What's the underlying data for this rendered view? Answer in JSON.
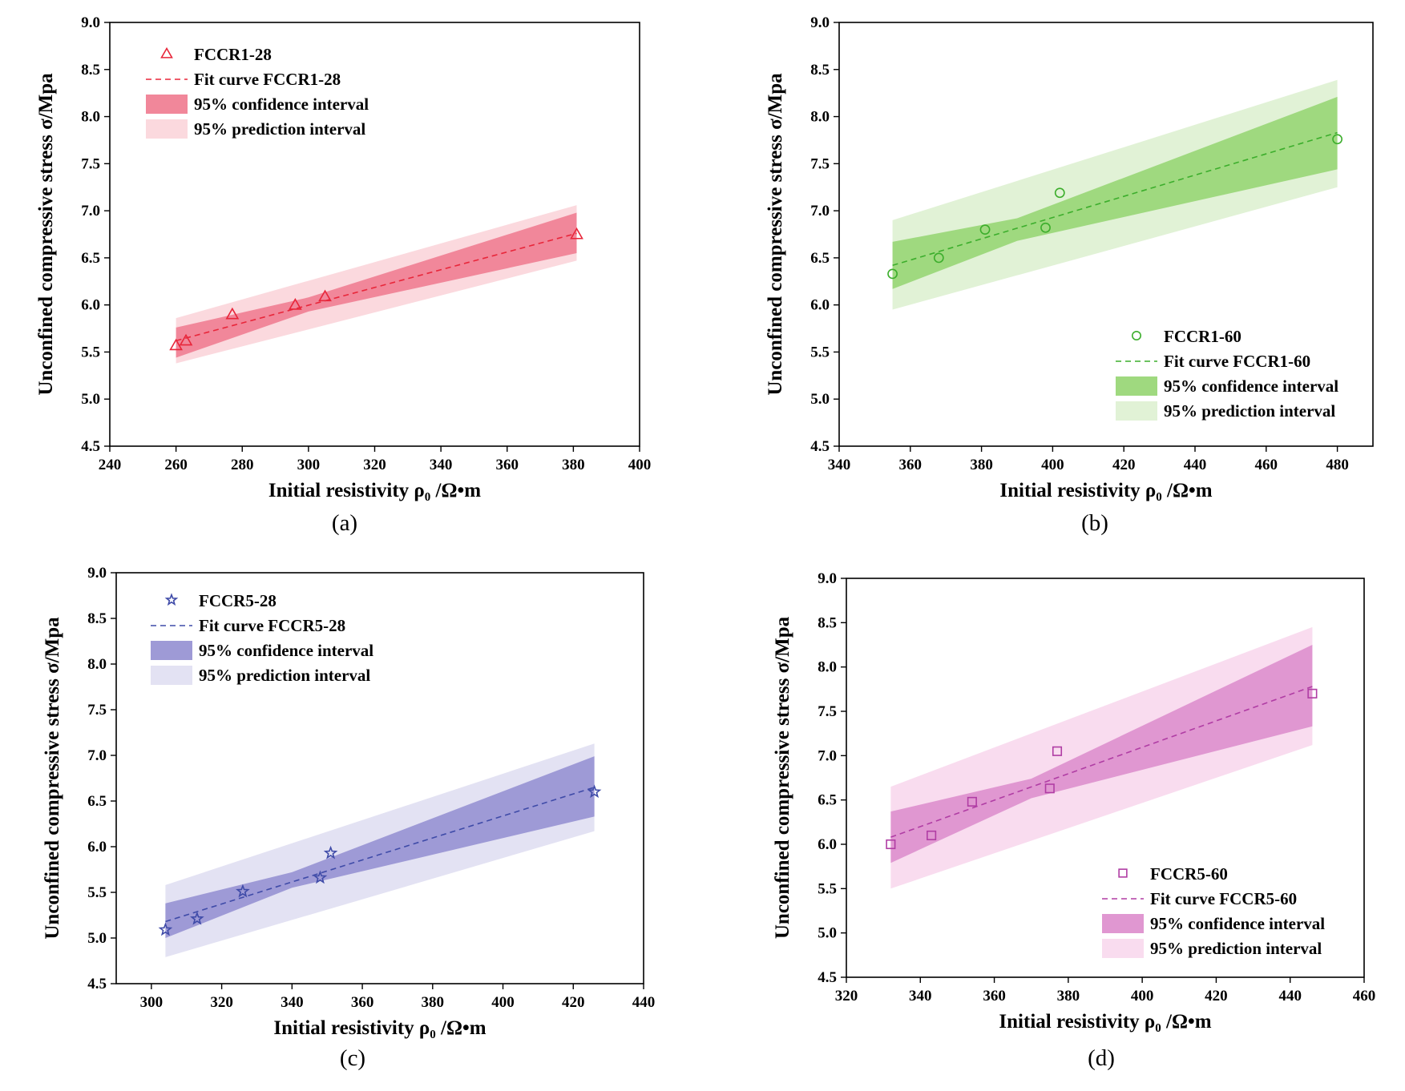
{
  "chart_data": [
    {
      "type": "scatter",
      "panel_label": "(a)",
      "xlabel": "Initial resistivity ρ₀ /Ω•m",
      "ylabel": "Unconfined compressive stress σ/Mpa",
      "xlim": [
        240,
        400
      ],
      "ylim": [
        4.5,
        9.0
      ],
      "xticks": [
        240,
        260,
        280,
        300,
        320,
        340,
        360,
        380,
        400
      ],
      "yticks": [
        4.5,
        5.0,
        5.5,
        6.0,
        6.5,
        7.0,
        7.5,
        8.0,
        8.5,
        9.0
      ],
      "marker": "triangle",
      "colors": {
        "point": "#e8263a",
        "line": "#e8263a",
        "confidence": "#f1879a",
        "prediction": "#fbd9de"
      },
      "legend_position": "top-left",
      "legend": {
        "points": "FCCR1-28",
        "fit": "Fit curve FCCR1-28",
        "confidence": "95% confidence interval",
        "prediction": "95% prediction interval"
      },
      "points": [
        {
          "x": 260,
          "y": 5.57
        },
        {
          "x": 263,
          "y": 5.62
        },
        {
          "x": 277,
          "y": 5.9
        },
        {
          "x": 296,
          "y": 6.0
        },
        {
          "x": 305,
          "y": 6.09
        },
        {
          "x": 381,
          "y": 6.75
        }
      ],
      "fit": {
        "x0": 260,
        "y0": 5.62,
        "x1": 381,
        "y1": 6.76
      },
      "confidence": {
        "lower": [
          [
            260,
            5.44
          ],
          [
            300,
            5.93
          ],
          [
            381,
            6.55
          ]
        ],
        "upper": [
          [
            260,
            5.76
          ],
          [
            300,
            6.08
          ],
          [
            381,
            6.98
          ]
        ]
      },
      "prediction": {
        "lower": [
          [
            260,
            5.38
          ],
          [
            381,
            6.47
          ]
        ],
        "upper": [
          [
            260,
            5.86
          ],
          [
            381,
            7.06
          ]
        ]
      }
    },
    {
      "type": "scatter",
      "panel_label": "(b)",
      "xlabel": "Initial resistivity ρ₀ /Ω•m",
      "ylabel": "Unconfined compressive stress σ/Mpa",
      "xlim": [
        340,
        490
      ],
      "ylim": [
        4.5,
        9.0
      ],
      "xticks": [
        340,
        360,
        380,
        400,
        420,
        440,
        460,
        480
      ],
      "yticks": [
        4.5,
        5.0,
        5.5,
        6.0,
        6.5,
        7.0,
        7.5,
        8.0,
        8.5,
        9.0
      ],
      "marker": "circle",
      "colors": {
        "point": "#3cae2c",
        "line": "#3cae2c",
        "confidence": "#9fd97f",
        "prediction": "#e1f2d6"
      },
      "legend_position": "bottom-right",
      "legend": {
        "points": "FCCR1-60",
        "fit": "Fit curve FCCR1-60",
        "confidence": "95% confidence interval",
        "prediction": "95% prediction interval"
      },
      "points": [
        {
          "x": 355,
          "y": 6.33
        },
        {
          "x": 368,
          "y": 6.5
        },
        {
          "x": 381,
          "y": 6.8
        },
        {
          "x": 398,
          "y": 6.82
        },
        {
          "x": 402,
          "y": 7.19
        },
        {
          "x": 480,
          "y": 7.76
        }
      ],
      "fit": {
        "x0": 355,
        "y0": 6.42,
        "x1": 480,
        "y1": 7.83
      },
      "confidence": {
        "lower": [
          [
            355,
            6.17
          ],
          [
            390,
            6.68
          ],
          [
            480,
            7.44
          ]
        ],
        "upper": [
          [
            355,
            6.67
          ],
          [
            390,
            6.92
          ],
          [
            480,
            8.21
          ]
        ]
      },
      "prediction": {
        "lower": [
          [
            355,
            5.95
          ],
          [
            480,
            7.25
          ]
        ],
        "upper": [
          [
            355,
            6.9
          ],
          [
            480,
            8.39
          ]
        ]
      }
    },
    {
      "type": "scatter",
      "panel_label": "(c)",
      "xlabel": "Initial resistivity ρ₀ /Ω•m",
      "ylabel": "Unconfined compressive stress σ/Mpa",
      "xlim": [
        290,
        440
      ],
      "ylim": [
        4.5,
        9.0
      ],
      "xticks": [
        300,
        320,
        340,
        360,
        380,
        400,
        420,
        440
      ],
      "yticks": [
        4.5,
        5.0,
        5.5,
        6.0,
        6.5,
        7.0,
        7.5,
        8.0,
        8.5,
        9.0
      ],
      "marker": "star",
      "colors": {
        "point": "#3f4ba8",
        "line": "#3f4ba8",
        "confidence": "#9e9ad6",
        "prediction": "#e3e2f3"
      },
      "legend_position": "top-left",
      "legend": {
        "points": "FCCR5-28",
        "fit": "Fit curve FCCR5-28",
        "confidence": "95% confidence interval",
        "prediction": "95% prediction interval"
      },
      "points": [
        {
          "x": 304,
          "y": 5.09
        },
        {
          "x": 313,
          "y": 5.21
        },
        {
          "x": 326,
          "y": 5.51
        },
        {
          "x": 348,
          "y": 5.66
        },
        {
          "x": 351,
          "y": 5.93
        },
        {
          "x": 426,
          "y": 6.6
        }
      ],
      "fit": {
        "x0": 304,
        "y0": 5.18,
        "x1": 426,
        "y1": 6.65
      },
      "confidence": {
        "lower": [
          [
            304,
            5.0
          ],
          [
            340,
            5.55
          ],
          [
            426,
            6.33
          ]
        ],
        "upper": [
          [
            304,
            5.38
          ],
          [
            340,
            5.72
          ],
          [
            426,
            6.99
          ]
        ]
      },
      "prediction": {
        "lower": [
          [
            304,
            4.79
          ],
          [
            426,
            6.17
          ]
        ],
        "upper": [
          [
            304,
            5.58
          ],
          [
            426,
            7.13
          ]
        ]
      }
    },
    {
      "type": "scatter",
      "panel_label": "(d)",
      "xlabel": "Initial resistivity ρ₀ /Ω•m",
      "ylabel": "Unconfined compressive stress σ/Mpa",
      "xlim": [
        320,
        460
      ],
      "ylim": [
        4.5,
        9.0
      ],
      "xticks": [
        320,
        340,
        360,
        380,
        400,
        420,
        440,
        460
      ],
      "yticks": [
        4.5,
        5.0,
        5.5,
        6.0,
        6.5,
        7.0,
        7.5,
        8.0,
        8.5,
        9.0
      ],
      "marker": "square",
      "colors": {
        "point": "#b03da4",
        "line": "#b03da4",
        "confidence": "#e097d1",
        "prediction": "#f9dcef"
      },
      "legend_position": "bottom-right",
      "legend": {
        "points": "FCCR5-60",
        "fit": "Fit curve FCCR5-60",
        "confidence": "95% confidence interval",
        "prediction": "95% prediction interval"
      },
      "points": [
        {
          "x": 332,
          "y": 6.0
        },
        {
          "x": 343,
          "y": 6.1
        },
        {
          "x": 354,
          "y": 6.48
        },
        {
          "x": 375,
          "y": 6.63
        },
        {
          "x": 377,
          "y": 7.05
        },
        {
          "x": 446,
          "y": 7.7
        }
      ],
      "fit": {
        "x0": 332,
        "y0": 6.08,
        "x1": 446,
        "y1": 7.78
      },
      "confidence": {
        "lower": [
          [
            332,
            5.79
          ],
          [
            370,
            6.52
          ],
          [
            446,
            7.33
          ]
        ],
        "upper": [
          [
            332,
            6.37
          ],
          [
            370,
            6.74
          ],
          [
            446,
            8.25
          ]
        ]
      },
      "prediction": {
        "lower": [
          [
            332,
            5.5
          ],
          [
            446,
            7.12
          ]
        ],
        "upper": [
          [
            332,
            6.65
          ],
          [
            446,
            8.45
          ]
        ]
      }
    }
  ]
}
